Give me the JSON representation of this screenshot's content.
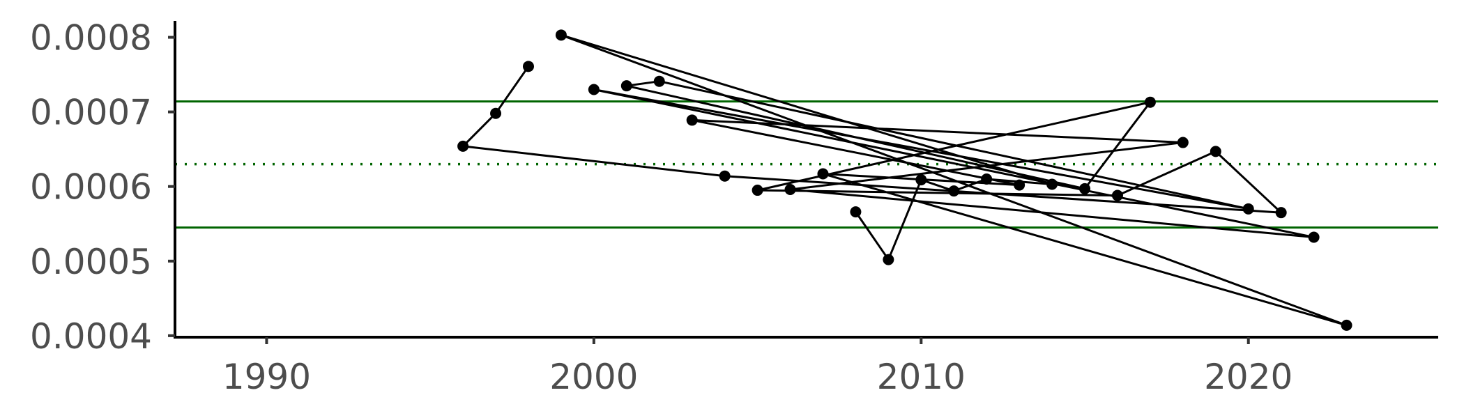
{
  "chart_data": {
    "type": "line",
    "title": "",
    "xlabel": "",
    "ylabel": "",
    "xlim": [
      1987.2,
      2025.8
    ],
    "ylim": [
      0.000398,
      0.000822
    ],
    "x_ticks": [
      1990,
      2000,
      2010,
      2020
    ],
    "x_tick_labels": [
      "1990",
      "2000",
      "2010",
      "2020"
    ],
    "y_ticks": [
      0.0004,
      0.0005,
      0.0006,
      0.0007,
      0.0008
    ],
    "y_tick_labels": [
      "0.0004",
      "0.0005",
      "0.0006",
      "0.0007",
      "0.0008"
    ],
    "grid": false,
    "legend": "none",
    "reference_lines": [
      {
        "type": "horizontal",
        "y": 0.000714,
        "style": "solid",
        "color": "#006400"
      },
      {
        "type": "horizontal",
        "y": 0.00063,
        "style": "dotted",
        "color": "#006400"
      },
      {
        "type": "horizontal",
        "y": 0.000545,
        "style": "solid",
        "color": "#006400"
      }
    ],
    "series": [
      {
        "color": "#000000",
        "points": [
          {
            "x": 1998,
            "y": 0.000761
          },
          {
            "x": 1997,
            "y": 0.000698
          },
          {
            "x": 1996,
            "y": 0.000654
          },
          {
            "x": 2004,
            "y": 0.000614
          },
          {
            "x": 2021,
            "y": 0.000565
          },
          {
            "x": 2019,
            "y": 0.000647
          },
          {
            "x": 2016,
            "y": 0.000588
          },
          {
            "x": 2005,
            "y": 0.000595
          },
          {
            "x": 2017,
            "y": 0.000713
          },
          {
            "x": 2015,
            "y": 0.000597
          },
          {
            "x": 2001,
            "y": 0.000735
          },
          {
            "x": 2002,
            "y": 0.000741
          },
          {
            "x": 2020,
            "y": 0.00057
          },
          {
            "x": 2000,
            "y": 0.00073
          },
          {
            "x": 2022,
            "y": 0.000532
          },
          {
            "x": 2006,
            "y": 0.000596
          },
          {
            "x": 2018,
            "y": 0.000659
          },
          {
            "x": 2003,
            "y": 0.000689
          },
          {
            "x": 2013,
            "y": 0.000602
          },
          {
            "x": 2007,
            "y": 0.000617
          },
          {
            "x": 2023,
            "y": 0.000414
          },
          {
            "x": 1999,
            "y": 0.000803
          },
          {
            "x": 2014,
            "y": 0.000603
          },
          {
            "x": 2012,
            "y": 0.00061
          },
          {
            "x": 2011,
            "y": 0.000594
          },
          {
            "x": 2010,
            "y": 0.000609
          },
          {
            "x": 2009,
            "y": 0.000502
          },
          {
            "x": 2008,
            "y": 0.000566
          }
        ]
      }
    ]
  }
}
